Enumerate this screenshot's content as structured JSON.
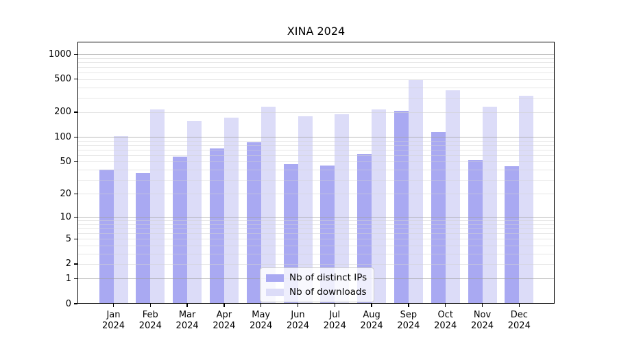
{
  "chart_data": {
    "type": "bar",
    "title": "XINA 2024",
    "categories": [
      "Jan",
      "Feb",
      "Mar",
      "Apr",
      "May",
      "Jun",
      "Jul",
      "Aug",
      "Sep",
      "Oct",
      "Nov",
      "Dec"
    ],
    "year": "2024",
    "series": [
      {
        "name": "Nb of distinct IPs",
        "color": "#a9a9f2",
        "values": [
          40,
          36,
          58,
          72,
          87,
          47,
          45,
          62,
          209,
          115,
          52,
          44
        ]
      },
      {
        "name": "Nb of downloads",
        "color": "#dcdcf8",
        "values": [
          102,
          217,
          156,
          172,
          233,
          178,
          190,
          216,
          489,
          370,
          233,
          316
        ]
      }
    ],
    "xlabel": "",
    "ylabel": "",
    "yscale": "log1p",
    "yticks": [
      0,
      1,
      2,
      5,
      10,
      20,
      50,
      100,
      200,
      500,
      1000
    ],
    "ylim": [
      0,
      1412
    ],
    "grid": true,
    "legend_position": "lower center inside",
    "colors": {
      "spine": "#000000",
      "background": "#ffffff",
      "tick_text": "#000000"
    }
  }
}
